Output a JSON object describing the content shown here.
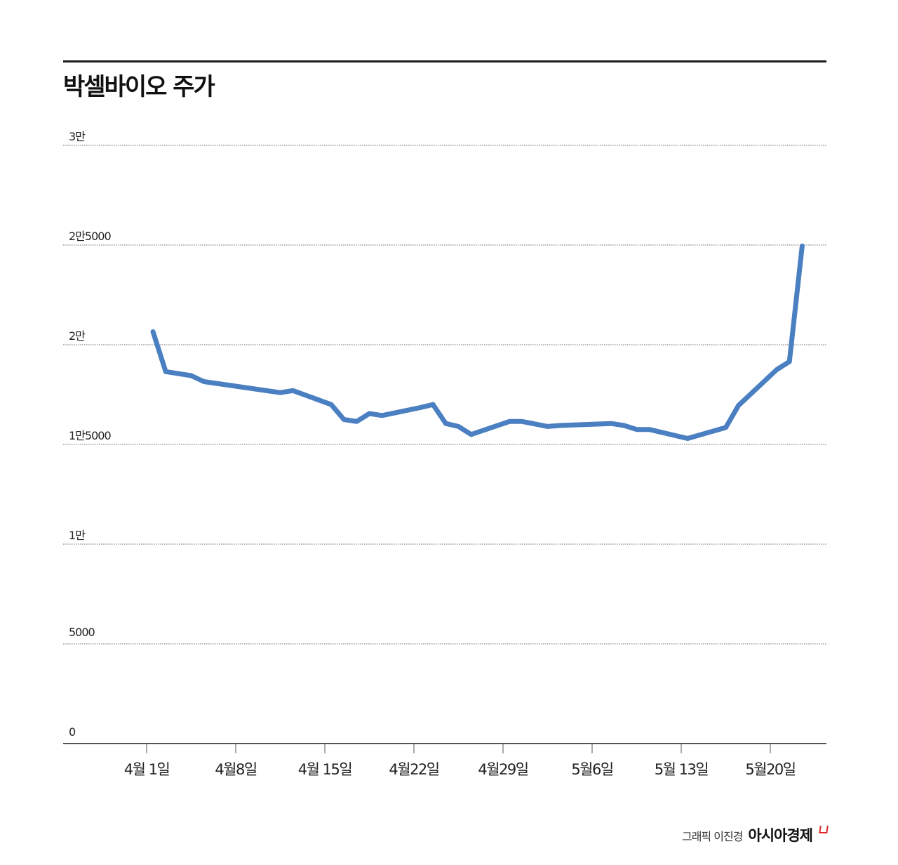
{
  "header": {
    "title": "박셀바이오 주가"
  },
  "footer": {
    "credit": "그래픽 이진경",
    "brand": "아시아경제"
  },
  "colors": {
    "line": "#4a7fc1",
    "grid": "#8a8a8a",
    "axis": "#555555",
    "rule": "#1a1a1a",
    "brand_mark": "#e0262b"
  },
  "y_axis": {
    "ticks": [
      {
        "label": "3만",
        "value": 30000
      },
      {
        "label": "2만5000",
        "value": 25000
      },
      {
        "label": "2만",
        "value": 20000
      },
      {
        "label": "1만5000",
        "value": 15000
      },
      {
        "label": "1만",
        "value": 10000
      },
      {
        "label": "5000",
        "value": 5000
      },
      {
        "label": "0",
        "value": 0
      }
    ]
  },
  "x_axis": {
    "ticks": [
      {
        "label": "4월 1일",
        "day": 0
      },
      {
        "label": "4월8일",
        "day": 7
      },
      {
        "label": "4월 15일",
        "day": 14
      },
      {
        "label": "4월22일",
        "day": 21
      },
      {
        "label": "4월29일",
        "day": 28
      },
      {
        "label": "5월6일",
        "day": 35
      },
      {
        "label": "5월 13일",
        "day": 42
      },
      {
        "label": "5월20일",
        "day": 49
      }
    ]
  },
  "chart_data": {
    "type": "line",
    "title": "박셀바이오 주가",
    "xlabel": "",
    "ylabel": "",
    "ylim": [
      0,
      30000
    ],
    "grid": true,
    "legend": null,
    "x_tick_labels": [
      "4월 1일",
      "4월8일",
      "4월 15일",
      "4월22일",
      "4월29일",
      "5월6일",
      "5월 13일",
      "5월20일"
    ],
    "y_tick_labels": [
      "0",
      "5000",
      "1만",
      "1만5000",
      "2만",
      "2만5000",
      "3만"
    ],
    "series": [
      {
        "name": "박셀바이오",
        "x_days_from_apr1": [
          0.5,
          1.5,
          3.5,
          4.5,
          10.5,
          11.5,
          14.5,
          15.5,
          16.5,
          17.5,
          18.5,
          21.5,
          22.5,
          23.5,
          24.5,
          25.5,
          28.5,
          29.5,
          31.5,
          32.5,
          36.5,
          37.5,
          38.5,
          39.5,
          42.5,
          45.5,
          46.5,
          49.5,
          50.5,
          51.5
        ],
        "values": [
          20650,
          18650,
          18450,
          18150,
          17600,
          17700,
          17000,
          16250,
          16150,
          16550,
          16450,
          16850,
          17000,
          16050,
          15900,
          15500,
          16150,
          16150,
          15900,
          15950,
          16050,
          15950,
          15750,
          15750,
          15300,
          15850,
          16950,
          18750,
          19150,
          24950
        ]
      }
    ]
  }
}
